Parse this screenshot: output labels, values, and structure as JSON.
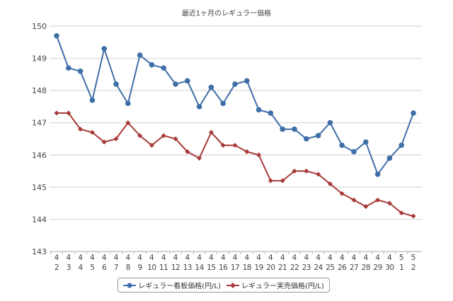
{
  "chart_data": {
    "type": "line",
    "title": "最近1ヶ月のレギュラー価格",
    "xlabel": "",
    "ylabel": "",
    "ylim": [
      143,
      150
    ],
    "yticks": [
      143,
      144,
      145,
      146,
      147,
      148,
      149,
      150
    ],
    "grid": true,
    "legend_position": "bottom",
    "categories": [
      "4/2",
      "4/3",
      "4/4",
      "4/5",
      "4/6",
      "4/7",
      "4/8",
      "4/9",
      "4/10",
      "4/11",
      "4/12",
      "4/13",
      "4/14",
      "4/15",
      "4/16",
      "4/17",
      "4/18",
      "4/19",
      "4/20",
      "4/21",
      "4/22",
      "4/23",
      "4/24",
      "4/25",
      "4/26",
      "4/27",
      "4/28",
      "4/29",
      "4/30",
      "5/1",
      "5/2"
    ],
    "series": [
      {
        "name": "レギュラー看板価格(円/L)",
        "color": "#3f6fa8",
        "marker": "circle",
        "values": [
          149.7,
          148.7,
          148.6,
          147.7,
          149.3,
          148.2,
          147.6,
          149.1,
          148.8,
          148.7,
          148.2,
          148.3,
          147.5,
          148.1,
          147.6,
          148.2,
          148.3,
          147.4,
          147.3,
          146.8,
          146.8,
          146.5,
          146.6,
          147.0,
          146.3,
          146.1,
          146.4,
          145.4,
          145.9,
          146.3,
          147.3
        ]
      },
      {
        "name": "レギュラー実売価格(円/L)",
        "color": "#a83a3a",
        "marker": "diamond",
        "values": [
          147.3,
          147.3,
          146.8,
          146.7,
          146.4,
          146.5,
          147.0,
          146.6,
          146.3,
          146.6,
          146.5,
          146.1,
          145.9,
          146.7,
          146.3,
          146.3,
          146.1,
          146.0,
          145.2,
          145.2,
          145.5,
          145.5,
          145.4,
          145.1,
          144.8,
          144.6,
          144.4,
          144.6,
          144.5,
          144.2,
          144.1
        ]
      }
    ]
  }
}
